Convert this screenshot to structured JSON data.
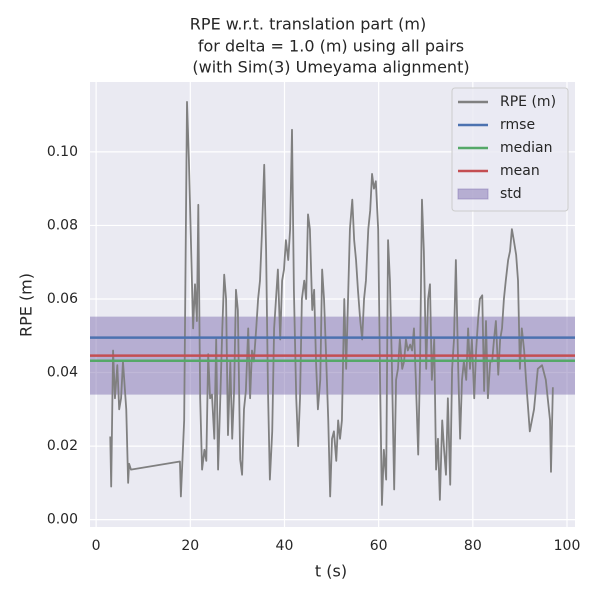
{
  "chart_data": {
    "type": "line",
    "title_lines": [
      "RPE w.r.t. translation part (m)",
      "for delta = 1.0 (m) using all pairs",
      "(with Sim(3) Umeyama alignment)"
    ],
    "x_label": "t (s)",
    "y_label": "RPE (m)",
    "xlim": [
      -1.3,
      101.7
    ],
    "ylim": [
      -0.002,
      0.119
    ],
    "xticks": [
      0,
      20,
      40,
      60,
      80,
      100
    ],
    "yticks": [
      {
        "value": 0,
        "label": "0.00"
      },
      0.02,
      0.04,
      0.06,
      0.08,
      {
        "value": 0.1,
        "label": "0.10"
      }
    ],
    "grid": true,
    "legend": "upper right",
    "series": [
      {
        "name": "RPE (m)",
        "color": "#808080",
        "x": [
          3.0,
          3.2,
          3.6,
          4.0,
          4.5,
          4.9,
          5.3,
          5.7,
          6.4,
          6.8,
          7.0,
          7.4,
          17.8,
          18.0,
          18.7,
          19.3,
          19.7,
          20.6,
          21.0,
          21.4,
          21.7,
          22.1,
          22.5,
          23.0,
          23.4,
          23.8,
          24.2,
          24.6,
          25.1,
          25.5,
          25.9,
          26.3,
          26.8,
          27.2,
          27.6,
          28.0,
          28.5,
          28.9,
          29.3,
          29.7,
          30.1,
          30.6,
          31.0,
          31.4,
          31.8,
          32.3,
          32.7,
          33.1,
          33.5,
          34.0,
          34.4,
          34.8,
          35.2,
          35.7,
          36.1,
          36.5,
          36.9,
          37.4,
          37.8,
          38.2,
          38.6,
          39.1,
          39.5,
          39.9,
          40.3,
          40.8,
          41.2,
          41.6,
          42.0,
          42.5,
          42.9,
          43.3,
          43.7,
          44.2,
          44.6,
          45.0,
          45.4,
          45.9,
          46.3,
          46.7,
          47.1,
          47.6,
          48.0,
          48.4,
          48.8,
          49.3,
          49.7,
          50.1,
          50.5,
          51.0,
          51.4,
          51.8,
          52.2,
          52.7,
          53.1,
          53.5,
          53.9,
          54.4,
          54.8,
          55.2,
          55.6,
          56.1,
          56.5,
          56.9,
          57.3,
          57.8,
          58.2,
          58.6,
          59.0,
          59.4,
          59.9,
          60.3,
          60.7,
          61.1,
          61.6,
          62.0,
          62.4,
          62.8,
          63.3,
          63.7,
          64.1,
          64.5,
          65.0,
          65.4,
          65.8,
          66.2,
          66.7,
          67.1,
          67.5,
          67.9,
          68.4,
          68.8,
          69.2,
          69.6,
          70.1,
          70.5,
          70.9,
          71.3,
          71.8,
          72.2,
          72.6,
          73.0,
          73.5,
          73.9,
          74.3,
          74.7,
          75.2,
          75.6,
          76.0,
          76.4,
          76.9,
          77.3,
          77.7,
          78.1,
          78.6,
          79.0,
          79.4,
          79.8,
          80.3,
          80.7,
          81.1,
          81.5,
          82.0,
          82.4,
          82.8,
          83.2,
          83.7,
          84.1,
          84.5,
          84.9,
          85.4,
          85.8,
          86.2,
          86.6,
          87.0,
          87.5,
          87.9,
          88.3,
          88.7,
          89.2,
          89.6,
          90.0,
          90.4,
          90.9,
          91.3,
          92.1,
          93.0,
          93.8,
          94.7,
          95.5,
          96.4,
          96.6,
          97.0
        ],
        "values": [
          0.0226,
          0.009,
          0.046,
          0.033,
          0.042,
          0.03,
          0.033,
          0.043,
          0.03,
          0.01,
          0.0152,
          0.0136,
          0.0158,
          0.0063,
          0.027,
          0.1136,
          0.098,
          0.052,
          0.064,
          0.054,
          0.0856,
          0.033,
          0.0136,
          0.019,
          0.016,
          0.045,
          0.033,
          0.034,
          0.022,
          0.049,
          0.0136,
          0.03,
          0.052,
          0.0666,
          0.06,
          0.023,
          0.043,
          0.022,
          0.035,
          0.0625,
          0.057,
          0.0163,
          0.0122,
          0.03,
          0.035,
          0.052,
          0.033,
          0.046,
          0.043,
          0.052,
          0.06,
          0.065,
          0.0775,
          0.0965,
          0.073,
          0.035,
          0.0109,
          0.024,
          0.052,
          0.06,
          0.068,
          0.049,
          0.065,
          0.068,
          0.076,
          0.0706,
          0.079,
          0.106,
          0.0625,
          0.033,
          0.02,
          0.033,
          0.06,
          0.065,
          0.06,
          0.083,
          0.079,
          0.057,
          0.0625,
          0.043,
          0.03,
          0.038,
          0.068,
          0.06,
          0.046,
          0.027,
          0.0063,
          0.022,
          0.024,
          0.016,
          0.027,
          0.022,
          0.027,
          0.06,
          0.041,
          0.06,
          0.079,
          0.087,
          0.076,
          0.0706,
          0.0625,
          0.054,
          0.049,
          0.06,
          0.065,
          0.079,
          0.084,
          0.094,
          0.09,
          0.092,
          0.079,
          0.038,
          0.004,
          0.019,
          0.0109,
          0.076,
          0.065,
          0.043,
          0.0082,
          0.038,
          0.041,
          0.049,
          0.041,
          0.043,
          0.049,
          0.046,
          0.0476,
          0.046,
          0.052,
          0.038,
          0.0177,
          0.043,
          0.087,
          0.073,
          0.041,
          0.06,
          0.064,
          0.038,
          0.049,
          0.0136,
          0.022,
          0.0054,
          0.027,
          0.019,
          0.0122,
          0.033,
          0.0095,
          0.041,
          0.049,
          0.0706,
          0.041,
          0.022,
          0.038,
          0.043,
          0.038,
          0.052,
          0.041,
          0.049,
          0.033,
          0.046,
          0.054,
          0.06,
          0.061,
          0.035,
          0.054,
          0.033,
          0.043,
          0.043,
          0.049,
          0.054,
          0.0394,
          0.049,
          0.052,
          0.06,
          0.065,
          0.0706,
          0.073,
          0.079,
          0.076,
          0.072,
          0.065,
          0.041,
          0.052,
          0.046,
          0.038,
          0.024,
          0.03,
          0.041,
          0.042,
          0.038,
          0.027,
          0.013,
          0.036
        ]
      }
    ],
    "hlines": [
      {
        "name": "rmse",
        "color": "#4c72b0",
        "value": 0.0495
      },
      {
        "name": "median",
        "color": "#55a868",
        "value": 0.0432
      },
      {
        "name": "mean",
        "color": "#c44e52",
        "value": 0.0446
      }
    ],
    "bands": [
      {
        "name": "std",
        "color": "#8172b2",
        "values": [
          0.034,
          0.0552
        ]
      }
    ]
  }
}
